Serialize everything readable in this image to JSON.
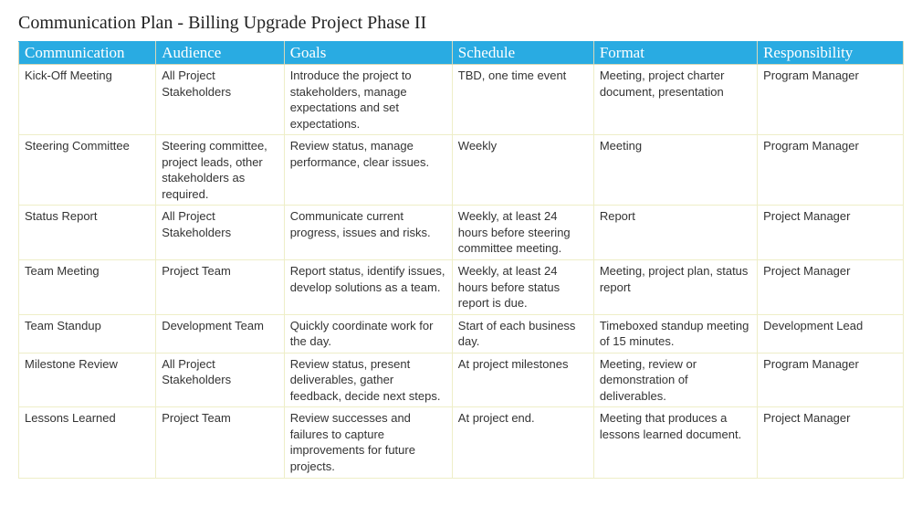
{
  "title": "Communication Plan - Billing Upgrade Project Phase II",
  "table": {
    "type": "table",
    "header_bg": "#29abe2",
    "header_text_color": "#ffffff",
    "border_color": "#eeeec8",
    "background_color": "#ffffff",
    "title_fontsize": 20,
    "header_fontsize": 17,
    "cell_fontsize": 13,
    "column_widths_pct": [
      15.5,
      14.5,
      19,
      16,
      18.5,
      16.5
    ],
    "columns": [
      "Communication",
      "Audience",
      "Goals",
      "Schedule",
      "Format",
      "Responsibility"
    ],
    "rows": [
      {
        "communication": "Kick-Off Meeting",
        "audience": "All Project Stakeholders",
        "goals": "Introduce the project to stakeholders, manage expectations and set expectations.",
        "schedule": "TBD, one time event",
        "format": "Meeting, project charter document, presentation",
        "responsibility": "Program Manager"
      },
      {
        "communication": "Steering Committee",
        "audience": "Steering committee, project leads, other stakeholders as required.",
        "goals": "Review status, manage performance, clear issues.",
        "schedule": "Weekly",
        "format": "Meeting",
        "responsibility": "Program Manager"
      },
      {
        "communication": "Status Report",
        "audience": "All Project Stakeholders",
        "goals": "Communicate current progress, issues and risks.",
        "schedule": "Weekly, at least 24 hours before steering committee meeting.",
        "format": "Report",
        "responsibility": "Project Manager"
      },
      {
        "communication": "Team Meeting",
        "audience": "Project Team",
        "goals": "Report status, identify issues, develop solutions as a team.",
        "schedule": "Weekly, at least 24 hours before status report is due.",
        "format": "Meeting, project plan, status report",
        "responsibility": "Project Manager"
      },
      {
        "communication": "Team Standup",
        "audience": "Development Team",
        "goals": "Quickly coordinate work for the day.",
        "schedule": "Start of each business day.",
        "format": "Timeboxed standup meeting of 15 minutes.",
        "responsibility": "Development Lead"
      },
      {
        "communication": "Milestone Review",
        "audience": "All Project Stakeholders",
        "goals": "Review status, present deliverables, gather feedback, decide next steps.",
        "schedule": "At project milestones",
        "format": "Meeting, review or demonstration of deliverables.",
        "responsibility": "Program Manager"
      },
      {
        "communication": "Lessons Learned",
        "audience": "Project Team",
        "goals": "Review successes and failures to capture improvements for future projects.",
        "schedule": "At project end.",
        "format": "Meeting that produces a lessons learned document.",
        "responsibility": "Project Manager"
      }
    ]
  }
}
